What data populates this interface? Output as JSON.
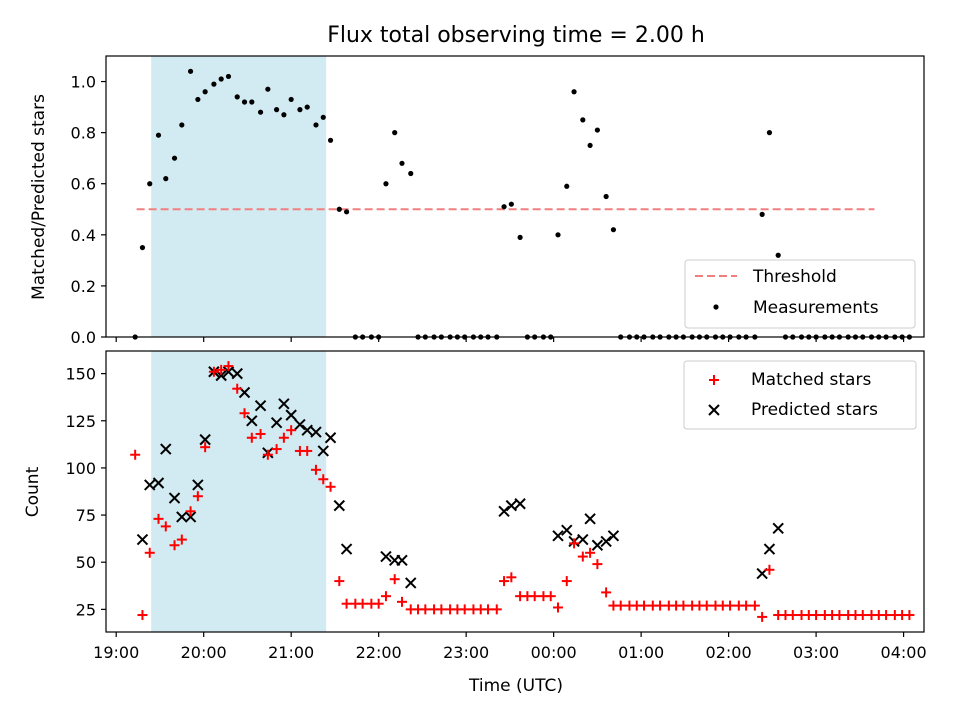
{
  "title": "Flux total observing time = 2.00 h",
  "chart_data": [
    {
      "type": "scatter",
      "ylabel": "Matched/Predicted stars",
      "ylim": [
        0,
        1.1
      ],
      "xlim": [
        "18:53",
        "04:14"
      ],
      "yticks": [
        "0.0",
        "0.2",
        "0.4",
        "0.6",
        "0.8",
        "1.0"
      ],
      "shaded_interval": {
        "start": "19:24",
        "end": "21:24",
        "color": "#add8e6"
      },
      "threshold": {
        "name": "Threshold",
        "value": 0.5,
        "x": [
          "19:14",
          "03:40"
        ],
        "color": "#f08080"
      },
      "legend": {
        "position": "lower right",
        "entries": [
          "Threshold",
          "Measurements"
        ]
      },
      "series": [
        {
          "name": "Measurements",
          "marker": "dot",
          "color": "#000000",
          "points": [
            [
              "19:13",
              0.0
            ],
            [
              "19:18",
              0.35
            ],
            [
              "19:23",
              0.6
            ],
            [
              "19:29",
              0.79
            ],
            [
              "19:34",
              0.62
            ],
            [
              "19:40",
              0.7
            ],
            [
              "19:45",
              0.83
            ],
            [
              "19:51",
              1.04
            ],
            [
              "19:56",
              0.93
            ],
            [
              "20:01",
              0.96
            ],
            [
              "20:07",
              0.99
            ],
            [
              "20:12",
              1.01
            ],
            [
              "20:17",
              1.02
            ],
            [
              "20:23",
              0.94
            ],
            [
              "20:28",
              0.92
            ],
            [
              "20:33",
              0.92
            ],
            [
              "20:39",
              0.88
            ],
            [
              "20:44",
              0.97
            ],
            [
              "20:50",
              0.89
            ],
            [
              "20:55",
              0.87
            ],
            [
              "21:00",
              0.93
            ],
            [
              "21:06",
              0.89
            ],
            [
              "21:11",
              0.9
            ],
            [
              "21:17",
              0.83
            ],
            [
              "21:22",
              0.86
            ],
            [
              "21:27",
              0.77
            ],
            [
              "21:33",
              0.5
            ],
            [
              "21:38",
              0.49
            ],
            [
              "21:44",
              0.0
            ],
            [
              "21:49",
              0.0
            ],
            [
              "21:55",
              0.0
            ],
            [
              "22:00",
              0.0
            ],
            [
              "22:05",
              0.6
            ],
            [
              "22:11",
              0.8
            ],
            [
              "22:16",
              0.68
            ],
            [
              "22:22",
              0.64
            ],
            [
              "22:27",
              0.0
            ],
            [
              "22:32",
              0.0
            ],
            [
              "22:38",
              0.0
            ],
            [
              "22:43",
              0.0
            ],
            [
              "22:49",
              0.0
            ],
            [
              "22:54",
              0.0
            ],
            [
              "22:59",
              0.0
            ],
            [
              "23:05",
              0.0
            ],
            [
              "23:10",
              0.0
            ],
            [
              "23:15",
              0.0
            ],
            [
              "23:21",
              0.0
            ],
            [
              "23:26",
              0.51
            ],
            [
              "23:31",
              0.52
            ],
            [
              "23:37",
              0.39
            ],
            [
              "23:42",
              0.0
            ],
            [
              "23:47",
              0.0
            ],
            [
              "23:53",
              0.0
            ],
            [
              "23:58",
              0.0
            ],
            [
              "00:03",
              0.4
            ],
            [
              "00:09",
              0.59
            ],
            [
              "00:14",
              0.96
            ],
            [
              "00:20",
              0.85
            ],
            [
              "00:25",
              0.75
            ],
            [
              "00:30",
              0.81
            ],
            [
              "00:36",
              0.55
            ],
            [
              "00:41",
              0.42
            ],
            [
              "00:46",
              0.0
            ],
            [
              "00:52",
              0.0
            ],
            [
              "00:57",
              0.0
            ],
            [
              "01:02",
              0.0
            ],
            [
              "01:08",
              0.0
            ],
            [
              "01:13",
              0.0
            ],
            [
              "01:19",
              0.0
            ],
            [
              "01:24",
              0.0
            ],
            [
              "01:29",
              0.0
            ],
            [
              "01:35",
              0.0
            ],
            [
              "01:40",
              0.0
            ],
            [
              "01:45",
              0.0
            ],
            [
              "01:51",
              0.0
            ],
            [
              "01:56",
              0.0
            ],
            [
              "02:01",
              0.0
            ],
            [
              "02:07",
              0.0
            ],
            [
              "02:12",
              0.0
            ],
            [
              "02:18",
              0.0
            ],
            [
              "02:23",
              0.48
            ],
            [
              "02:28",
              0.8
            ],
            [
              "02:34",
              0.32
            ],
            [
              "02:39",
              0.0
            ],
            [
              "02:44",
              0.0
            ],
            [
              "02:50",
              0.0
            ],
            [
              "02:55",
              0.0
            ],
            [
              "03:00",
              0.0
            ],
            [
              "03:06",
              0.0
            ],
            [
              "03:11",
              0.0
            ],
            [
              "03:16",
              0.0
            ],
            [
              "03:22",
              0.0
            ],
            [
              "03:27",
              0.0
            ],
            [
              "03:32",
              0.0
            ],
            [
              "03:38",
              0.0
            ],
            [
              "03:43",
              0.0
            ],
            [
              "03:48",
              0.0
            ],
            [
              "03:54",
              0.0
            ],
            [
              "03:59",
              0.0
            ],
            [
              "04:04",
              0.0
            ]
          ]
        }
      ]
    },
    {
      "type": "scatter",
      "xlabel": "Time (UTC)",
      "ylabel": "Count",
      "ylim": [
        13,
        162
      ],
      "xlim": [
        "18:53",
        "04:14"
      ],
      "xticks": [
        "19:00",
        "20:00",
        "21:00",
        "22:00",
        "23:00",
        "00:00",
        "01:00",
        "02:00",
        "03:00",
        "04:00"
      ],
      "yticks": [
        "25",
        "50",
        "75",
        "100",
        "125",
        "150"
      ],
      "shaded_interval": {
        "start": "19:24",
        "end": "21:24",
        "color": "#add8e6"
      },
      "legend": {
        "position": "upper right",
        "entries": [
          "Matched stars",
          "Predicted stars"
        ]
      },
      "series": [
        {
          "name": "Matched stars",
          "marker": "plus",
          "color": "#ff0000",
          "points": [
            [
              "19:13",
              107
            ],
            [
              "19:18",
              22
            ],
            [
              "19:23",
              55
            ],
            [
              "19:29",
              73
            ],
            [
              "19:34",
              69
            ],
            [
              "19:40",
              59
            ],
            [
              "19:45",
              62
            ],
            [
              "19:51",
              77
            ],
            [
              "19:56",
              85
            ],
            [
              "20:01",
              111
            ],
            [
              "20:07",
              151
            ],
            [
              "20:12",
              152
            ],
            [
              "20:17",
              154
            ],
            [
              "20:23",
              142
            ],
            [
              "20:28",
              129
            ],
            [
              "20:33",
              116
            ],
            [
              "20:39",
              118
            ],
            [
              "20:44",
              107
            ],
            [
              "20:50",
              110
            ],
            [
              "20:55",
              116
            ],
            [
              "21:00",
              120
            ],
            [
              "21:06",
              109
            ],
            [
              "21:11",
              109
            ],
            [
              "21:17",
              99
            ],
            [
              "21:22",
              94
            ],
            [
              "21:27",
              90
            ],
            [
              "21:33",
              40
            ],
            [
              "21:38",
              28
            ],
            [
              "21:44",
              28
            ],
            [
              "21:49",
              28
            ],
            [
              "21:55",
              28
            ],
            [
              "22:00",
              28
            ],
            [
              "22:05",
              32
            ],
            [
              "22:11",
              41
            ],
            [
              "22:16",
              29
            ],
            [
              "22:22",
              25
            ],
            [
              "22:27",
              25
            ],
            [
              "22:32",
              25
            ],
            [
              "22:38",
              25
            ],
            [
              "22:43",
              25
            ],
            [
              "22:49",
              25
            ],
            [
              "22:54",
              25
            ],
            [
              "22:59",
              25
            ],
            [
              "23:05",
              25
            ],
            [
              "23:10",
              25
            ],
            [
              "23:15",
              25
            ],
            [
              "23:21",
              25
            ],
            [
              "23:26",
              40
            ],
            [
              "23:31",
              42
            ],
            [
              "23:37",
              32
            ],
            [
              "23:42",
              32
            ],
            [
              "23:47",
              32
            ],
            [
              "23:53",
              32
            ],
            [
              "23:58",
              32
            ],
            [
              "00:03",
              26
            ],
            [
              "00:09",
              40
            ],
            [
              "00:14",
              60
            ],
            [
              "00:20",
              53
            ],
            [
              "00:25",
              55
            ],
            [
              "00:30",
              49
            ],
            [
              "00:36",
              34
            ],
            [
              "00:41",
              27
            ],
            [
              "00:46",
              27
            ],
            [
              "00:52",
              27
            ],
            [
              "00:57",
              27
            ],
            [
              "01:02",
              27
            ],
            [
              "01:08",
              27
            ],
            [
              "01:13",
              27
            ],
            [
              "01:19",
              27
            ],
            [
              "01:24",
              27
            ],
            [
              "01:29",
              27
            ],
            [
              "01:35",
              27
            ],
            [
              "01:40",
              27
            ],
            [
              "01:45",
              27
            ],
            [
              "01:51",
              27
            ],
            [
              "01:56",
              27
            ],
            [
              "02:01",
              27
            ],
            [
              "02:07",
              27
            ],
            [
              "02:12",
              27
            ],
            [
              "02:18",
              27
            ],
            [
              "02:23",
              21
            ],
            [
              "02:28",
              46
            ],
            [
              "02:34",
              22
            ],
            [
              "02:39",
              22
            ],
            [
              "02:44",
              22
            ],
            [
              "02:50",
              22
            ],
            [
              "02:55",
              22
            ],
            [
              "03:00",
              22
            ],
            [
              "03:06",
              22
            ],
            [
              "03:11",
              22
            ],
            [
              "03:16",
              22
            ],
            [
              "03:22",
              22
            ],
            [
              "03:27",
              22
            ],
            [
              "03:32",
              22
            ],
            [
              "03:38",
              22
            ],
            [
              "03:43",
              22
            ],
            [
              "03:48",
              22
            ],
            [
              "03:54",
              22
            ],
            [
              "03:59",
              22
            ],
            [
              "04:04",
              22
            ]
          ]
        },
        {
          "name": "Predicted stars",
          "marker": "x",
          "color": "#000000",
          "points": [
            [
              "19:18",
              62
            ],
            [
              "19:23",
              91
            ],
            [
              "19:29",
              92
            ],
            [
              "19:34",
              110
            ],
            [
              "19:40",
              84
            ],
            [
              "19:45",
              74
            ],
            [
              "19:51",
              74
            ],
            [
              "19:56",
              91
            ],
            [
              "20:01",
              115
            ],
            [
              "20:07",
              151
            ],
            [
              "20:12",
              149
            ],
            [
              "20:17",
              151
            ],
            [
              "20:23",
              150
            ],
            [
              "20:28",
              140
            ],
            [
              "20:33",
              125
            ],
            [
              "20:39",
              133
            ],
            [
              "20:44",
              108
            ],
            [
              "20:50",
              124
            ],
            [
              "20:55",
              134
            ],
            [
              "21:00",
              128
            ],
            [
              "21:06",
              123
            ],
            [
              "21:11",
              120
            ],
            [
              "21:17",
              119
            ],
            [
              "21:22",
              109
            ],
            [
              "21:27",
              116
            ],
            [
              "21:33",
              80
            ],
            [
              "21:38",
              57
            ],
            [
              "22:05",
              53
            ],
            [
              "22:11",
              51
            ],
            [
              "22:16",
              51
            ],
            [
              "22:22",
              39
            ],
            [
              "23:26",
              77
            ],
            [
              "23:31",
              80
            ],
            [
              "23:37",
              81
            ],
            [
              "00:03",
              64
            ],
            [
              "00:09",
              67
            ],
            [
              "00:14",
              61
            ],
            [
              "00:20",
              62
            ],
            [
              "00:25",
              73
            ],
            [
              "00:30",
              59
            ],
            [
              "00:36",
              61
            ],
            [
              "00:41",
              64
            ],
            [
              "02:23",
              44
            ],
            [
              "02:28",
              57
            ],
            [
              "02:34",
              68
            ]
          ]
        }
      ]
    }
  ]
}
